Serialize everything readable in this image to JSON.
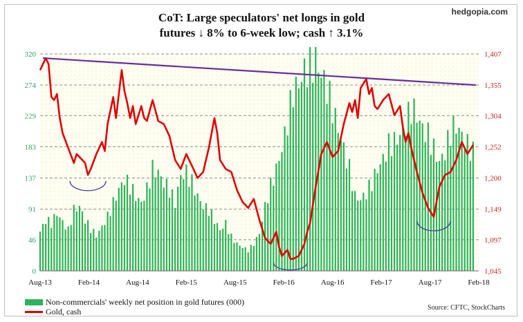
{
  "header": {
    "title_line1": "CoT: Large speculators' net longs in gold",
    "title_line2": "futures ↓ 8% to 6-week low; cash ↑ 3.1%",
    "brand": "hedgopia.com"
  },
  "legend": {
    "bars_label": "Non-commercials' weekly net position in gold futures (000)",
    "line_label": "Gold, cash"
  },
  "source": "Source: CFTC, StockCharts",
  "chart_data": {
    "type": "bar+line",
    "x_ticks": [
      "Aug-13",
      "Feb-14",
      "Aug-14",
      "Feb-15",
      "Aug-15",
      "Feb-16",
      "Aug-16",
      "Feb-17",
      "Aug-17",
      "Feb-18"
    ],
    "left_axis": {
      "ticks": [
        0,
        46,
        91,
        137,
        183,
        229,
        274,
        320
      ],
      "ylim": [
        0,
        320
      ],
      "color": "#2f9e63"
    },
    "right_axis": {
      "ticks": [
        "1,045",
        "1,097",
        "1,149",
        "1,200",
        "1,252",
        "1,304",
        "1,355",
        "1,407"
      ],
      "ylim": [
        1045,
        1407
      ],
      "color": "#cc2222"
    },
    "grid": true,
    "series": [
      {
        "name": "Non-commercials' weekly net position in gold futures (000)",
        "kind": "bar",
        "axis": "left",
        "color": "#2db35a",
        "points": [
          [
            0,
            58
          ],
          [
            2,
            75
          ],
          [
            4,
            70
          ],
          [
            6,
            85
          ],
          [
            8,
            72
          ],
          [
            10,
            60
          ],
          [
            12,
            90
          ],
          [
            14,
            95
          ],
          [
            16,
            75
          ],
          [
            18,
            62
          ],
          [
            20,
            52
          ],
          [
            22,
            65
          ],
          [
            24,
            80
          ],
          [
            26,
            100
          ],
          [
            28,
            120
          ],
          [
            30,
            135
          ],
          [
            32,
            125
          ],
          [
            34,
            110
          ],
          [
            36,
            100
          ],
          [
            38,
            120
          ],
          [
            40,
            150
          ],
          [
            42,
            145
          ],
          [
            44,
            130
          ],
          [
            46,
            120
          ],
          [
            48,
            100
          ],
          [
            50,
            140
          ],
          [
            52,
            145
          ],
          [
            54,
            130
          ],
          [
            56,
            110
          ],
          [
            58,
            95
          ],
          [
            60,
            90
          ],
          [
            62,
            75
          ],
          [
            64,
            60
          ],
          [
            66,
            70
          ],
          [
            68,
            50
          ],
          [
            70,
            40
          ],
          [
            72,
            35
          ],
          [
            74,
            30
          ],
          [
            76,
            40
          ],
          [
            78,
            55
          ],
          [
            80,
            95
          ],
          [
            82,
            125
          ],
          [
            84,
            150
          ],
          [
            86,
            180
          ],
          [
            88,
            220
          ],
          [
            90,
            265
          ],
          [
            92,
            275
          ],
          [
            94,
            295
          ],
          [
            96,
            300
          ],
          [
            98,
            310
          ],
          [
            100,
            290
          ],
          [
            102,
            270
          ],
          [
            104,
            240
          ],
          [
            106,
            210
          ],
          [
            108,
            180
          ],
          [
            110,
            150
          ],
          [
            112,
            110
          ],
          [
            114,
            105
          ],
          [
            116,
            115
          ],
          [
            118,
            130
          ],
          [
            120,
            150
          ],
          [
            122,
            165
          ],
          [
            124,
            185
          ],
          [
            126,
            190
          ],
          [
            128,
            200
          ],
          [
            130,
            215
          ],
          [
            132,
            240
          ],
          [
            134,
            230
          ],
          [
            136,
            210
          ],
          [
            138,
            200
          ],
          [
            140,
            180
          ],
          [
            142,
            160
          ],
          [
            144,
            175
          ],
          [
            146,
            205
          ],
          [
            148,
            215
          ],
          [
            150,
            200
          ],
          [
            152,
            185
          ],
          [
            154,
            175
          ]
        ]
      },
      {
        "name": "Gold, cash",
        "kind": "line",
        "axis": "right",
        "color": "#e00000",
        "points": [
          [
            0,
            1380
          ],
          [
            2,
            1400
          ],
          [
            3,
            1390
          ],
          [
            4,
            1335
          ],
          [
            5,
            1330
          ],
          [
            6,
            1340
          ],
          [
            7,
            1300
          ],
          [
            8,
            1275
          ],
          [
            10,
            1250
          ],
          [
            12,
            1225
          ],
          [
            13,
            1240
          ],
          [
            14,
            1235
          ],
          [
            16,
            1225
          ],
          [
            17,
            1205
          ],
          [
            18,
            1215
          ],
          [
            20,
            1240
          ],
          [
            22,
            1260
          ],
          [
            23,
            1245
          ],
          [
            24,
            1290
          ],
          [
            26,
            1335
          ],
          [
            27,
            1300
          ],
          [
            28,
            1340
          ],
          [
            29,
            1380
          ],
          [
            30,
            1345
          ],
          [
            31,
            1325
          ],
          [
            32,
            1300
          ],
          [
            33,
            1320
          ],
          [
            34,
            1290
          ],
          [
            36,
            1320
          ],
          [
            37,
            1300
          ],
          [
            38,
            1295
          ],
          [
            40,
            1330
          ],
          [
            42,
            1295
          ],
          [
            44,
            1290
          ],
          [
            46,
            1270
          ],
          [
            48,
            1230
          ],
          [
            50,
            1215
          ],
          [
            52,
            1240
          ],
          [
            54,
            1220
          ],
          [
            56,
            1200
          ],
          [
            58,
            1210
          ],
          [
            60,
            1250
          ],
          [
            62,
            1300
          ],
          [
            63,
            1275
          ],
          [
            64,
            1230
          ],
          [
            66,
            1215
          ],
          [
            68,
            1210
          ],
          [
            70,
            1180
          ],
          [
            72,
            1160
          ],
          [
            74,
            1150
          ],
          [
            76,
            1165
          ],
          [
            78,
            1130
          ],
          [
            80,
            1100
          ],
          [
            82,
            1090
          ],
          [
            84,
            1110
          ],
          [
            85,
            1085
          ],
          [
            86,
            1070
          ],
          [
            88,
            1080
          ],
          [
            89,
            1065
          ],
          [
            90,
            1065
          ],
          [
            92,
            1070
          ],
          [
            94,
            1090
          ],
          [
            95,
            1110
          ],
          [
            96,
            1125
          ],
          [
            98,
            1185
          ],
          [
            100,
            1240
          ],
          [
            102,
            1260
          ],
          [
            104,
            1235
          ],
          [
            106,
            1245
          ],
          [
            108,
            1290
          ],
          [
            110,
            1325
          ],
          [
            111,
            1310
          ],
          [
            112,
            1330
          ],
          [
            113,
            1300
          ],
          [
            114,
            1350
          ],
          [
            116,
            1365
          ],
          [
            117,
            1340
          ],
          [
            118,
            1350
          ],
          [
            119,
            1320
          ],
          [
            120,
            1315
          ],
          [
            122,
            1330
          ],
          [
            124,
            1340
          ],
          [
            126,
            1305
          ],
          [
            128,
            1320
          ],
          [
            129,
            1285
          ],
          [
            130,
            1260
          ],
          [
            131,
            1275
          ],
          [
            132,
            1250
          ],
          [
            134,
            1210
          ],
          [
            136,
            1175
          ],
          [
            138,
            1150
          ],
          [
            140,
            1135
          ],
          [
            141,
            1160
          ],
          [
            142,
            1185
          ],
          [
            144,
            1205
          ],
          [
            146,
            1210
          ],
          [
            148,
            1230
          ],
          [
            150,
            1260
          ],
          [
            152,
            1240
          ],
          [
            154,
            1255
          ]
        ]
      }
    ],
    "annotations": [
      "downtrend line (purple) across gold price highs",
      "blue semicircles marking troughs"
    ]
  }
}
